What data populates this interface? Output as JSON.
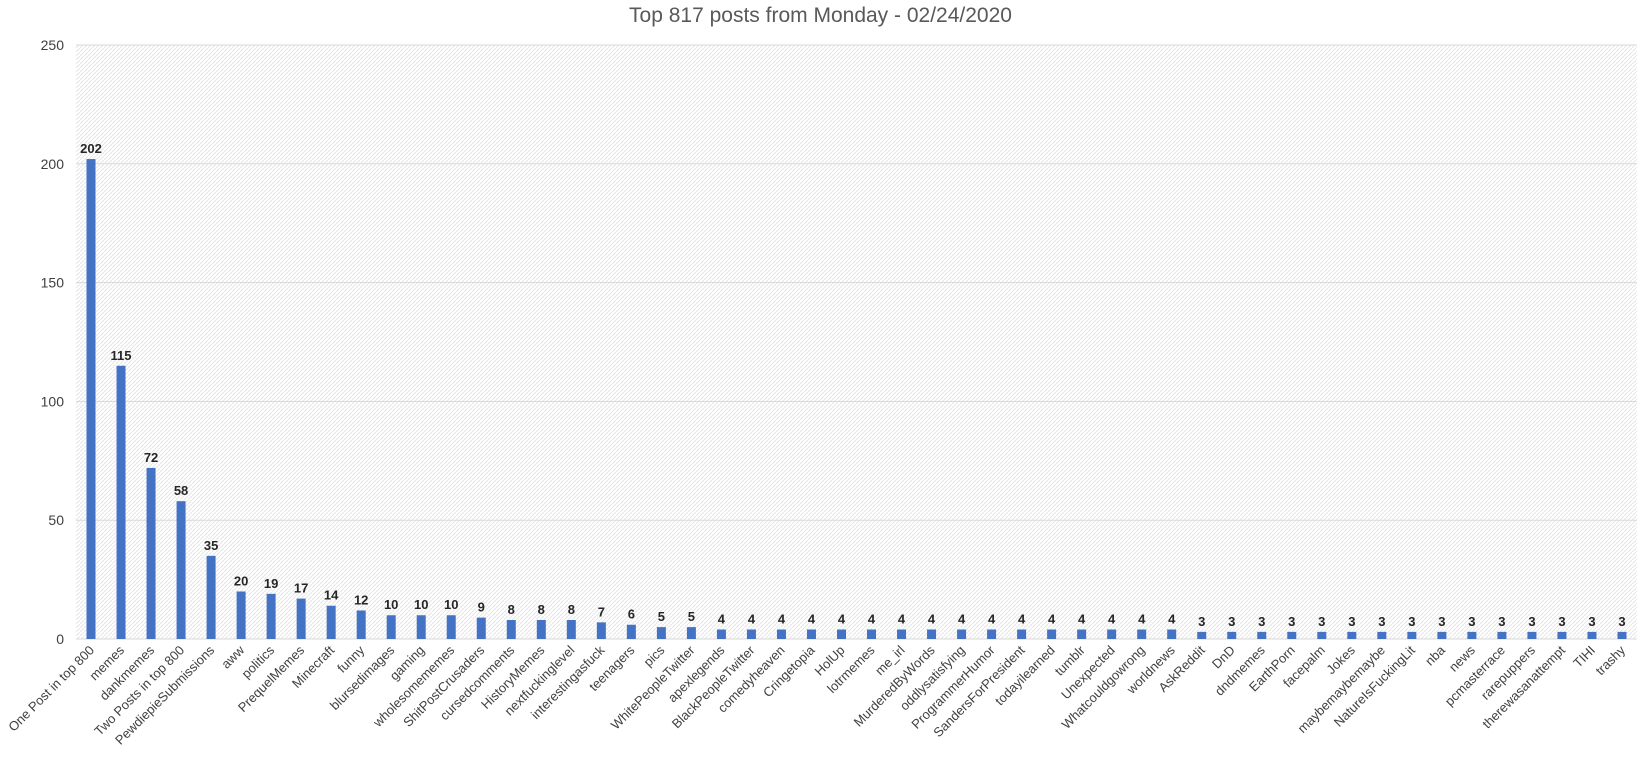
{
  "chart_data": {
    "type": "bar",
    "title": "Top 817 posts from Monday - 02/24/2020",
    "xlabel": "",
    "ylabel": "",
    "ylim": [
      0,
      250
    ],
    "yticks": [
      "0",
      "50",
      "100",
      "150",
      "200",
      "250"
    ],
    "grid": true,
    "legend": "none",
    "bar_color": "#4472c4",
    "categories": [
      "One Post in top 800",
      "memes",
      "dankmemes",
      "Two Posts in top 800",
      "PewdiepieSubmissions",
      "aww",
      "politics",
      "PrequelMemes",
      "Minecraft",
      "funny",
      "blursedimages",
      "gaming",
      "wholesomememes",
      "ShitPostCrusaders",
      "cursedcomments",
      "HistoryMemes",
      "nextfuckinglevel",
      "interestingasfuck",
      "teenagers",
      "pics",
      "WhitePeopleTwitter",
      "apexlegends",
      "BlackPeopleTwitter",
      "comedyheaven",
      "Cringetopia",
      "HolUp",
      "lotrmemes",
      "me_irl",
      "MurderedByWords",
      "oddlysatisfying",
      "ProgrammerHumor",
      "SandersForPresident",
      "todayilearned",
      "tumblr",
      "Unexpected",
      "Whatcouldgowrong",
      "worldnews",
      "AskReddit",
      "DnD",
      "dndmemes",
      "EarthPorn",
      "facepalm",
      "Jokes",
      "maybemaybemaybe",
      "NatureIsFuckingLit",
      "nba",
      "news",
      "pcmasterrace",
      "rarepuppers",
      "therewasanattempt",
      "TIHI",
      "trashy"
    ],
    "values": [
      202,
      115,
      72,
      58,
      35,
      20,
      19,
      17,
      14,
      12,
      10,
      10,
      10,
      9,
      8,
      8,
      8,
      7,
      6,
      5,
      5,
      4,
      4,
      4,
      4,
      4,
      4,
      4,
      4,
      4,
      4,
      4,
      4,
      4,
      4,
      4,
      4,
      3,
      3,
      3,
      3,
      3,
      3,
      3,
      3,
      3,
      3,
      3,
      3,
      3,
      3,
      3
    ]
  }
}
